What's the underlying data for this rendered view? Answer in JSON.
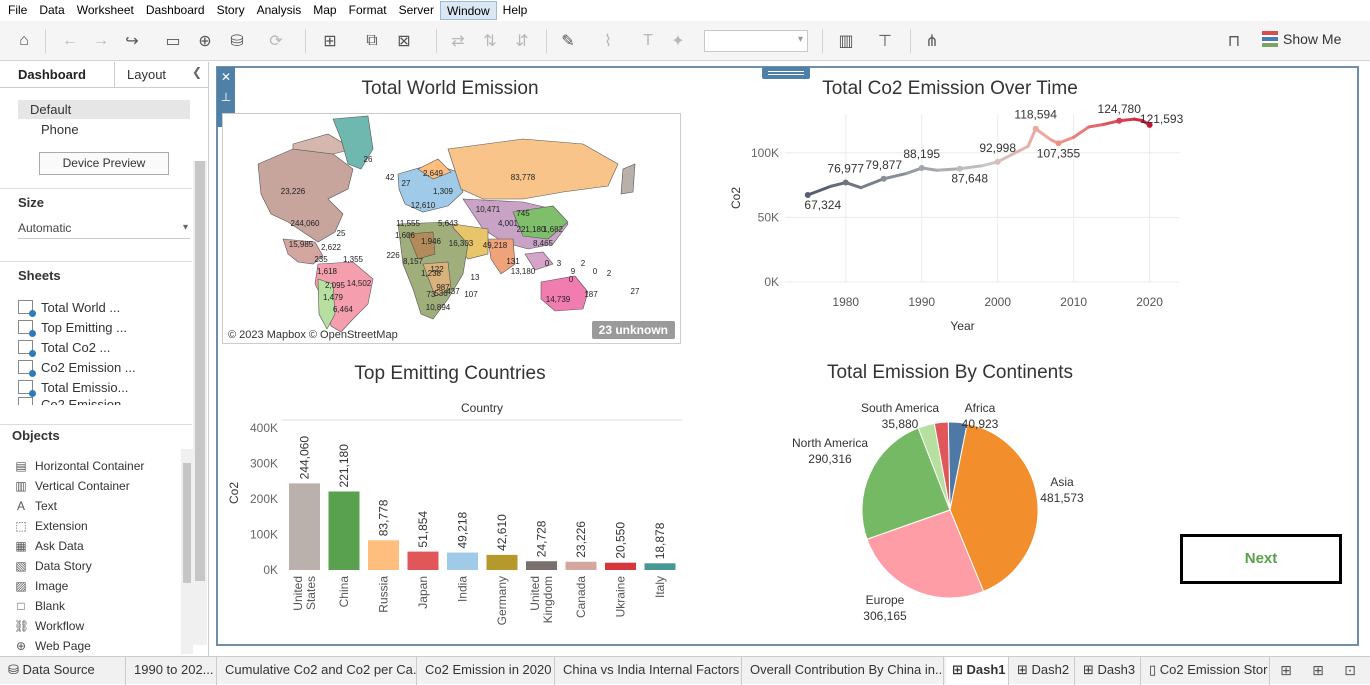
{
  "menu": [
    "File",
    "Data",
    "Worksheet",
    "Dashboard",
    "Story",
    "Analysis",
    "Map",
    "Format",
    "Server",
    "Window",
    "Help"
  ],
  "menu_active": "Window",
  "toolbar": {
    "show_me_label": "Show Me"
  },
  "left_pane": {
    "tabs": [
      "Dashboard",
      "Layout"
    ],
    "device_options": [
      "Default",
      "Phone"
    ],
    "device_preview_label": "Device Preview",
    "size_title": "Size",
    "size_value": "Automatic",
    "sheets_title": "Sheets",
    "sheets": [
      "Total World ...",
      "Top Emitting ...",
      "Total Co2 ...",
      "Co2 Emission ...",
      "Total Emissio...",
      "Co2 Emission"
    ],
    "objects_title": "Objects",
    "objects": [
      {
        "label": "Horizontal Container",
        "icon": "horizontal-container-icon"
      },
      {
        "label": "Vertical Container",
        "icon": "vertical-container-icon"
      },
      {
        "label": "Text",
        "icon": "text-icon"
      },
      {
        "label": "Extension",
        "icon": "extension-icon"
      },
      {
        "label": "Ask Data",
        "icon": "ask-data-icon"
      },
      {
        "label": "Data Story",
        "icon": "data-story-icon"
      },
      {
        "label": "Image",
        "icon": "image-icon"
      },
      {
        "label": "Blank",
        "icon": "blank-icon"
      },
      {
        "label": "Workflow",
        "icon": "workflow-icon"
      },
      {
        "label": "Web Page",
        "icon": "web-page-icon"
      }
    ]
  },
  "dashboard": {
    "map": {
      "title": "Total World Emission",
      "credit": "© 2023 Mapbox © OpenStreetMap",
      "unknown_badge": "23 unknown",
      "labels": [
        "26",
        "23,226",
        "244,060",
        "25",
        "15,985",
        "2,622",
        "235",
        "1,355",
        "1,618",
        "2,095",
        "1,479",
        "14,502",
        "6,464",
        "2,649",
        "42",
        "27",
        "1,309",
        "83,778",
        "12,610",
        "10,471",
        "745",
        "11,555",
        "5,643",
        "4,001",
        "221,180",
        "1,606",
        "1,946",
        "16,303",
        "49,218",
        "8,465",
        "1,682",
        "226",
        "8,157",
        "1,238",
        "13,180",
        "131",
        "122",
        "987",
        "0",
        "3",
        "2",
        "9",
        "0",
        "0",
        "2",
        "73",
        "536",
        "437",
        "107",
        "13",
        "10,894",
        "14,739",
        "187",
        "27"
      ]
    },
    "bar": {
      "title": "Top Emitting Countries"
    },
    "line": {
      "title": "Total Co2 Emission Over Time"
    },
    "pie": {
      "title": "Total Emission By Continents"
    },
    "next_label": "Next"
  },
  "chart_data": [
    {
      "type": "bar",
      "title": "Top Emitting Countries",
      "xlabel": "Country",
      "ylabel": "Co2",
      "categories": [
        "United States",
        "China",
        "Russia",
        "Japan",
        "India",
        "Germany",
        "United Kingdom",
        "Canada",
        "Ukraine",
        "Italy"
      ],
      "values": [
        244060,
        221180,
        83778,
        51854,
        49218,
        42610,
        24728,
        23226,
        20550,
        18878
      ],
      "value_labels": [
        "244,060",
        "221,180",
        "83,778",
        "51,854",
        "49,218",
        "42,610",
        "24,728",
        "23,226",
        "20,550",
        "18,878"
      ],
      "colors": [
        "#bab0ac",
        "#59a14f",
        "#ffbe7d",
        "#e15759",
        "#a0cbe8",
        "#b6992d",
        "#79706e",
        "#d4a6a0",
        "#d7373c",
        "#499894"
      ],
      "yticks": [
        "0K",
        "100K",
        "200K",
        "300K",
        "400K"
      ],
      "ylim": [
        0,
        400000
      ],
      "grid": false
    },
    {
      "type": "line",
      "title": "Total Co2 Emission Over Time",
      "xlabel": "Year",
      "ylabel": "Co2",
      "x": [
        1975,
        1978,
        1980,
        1982,
        1985,
        1988,
        1990,
        1992,
        1995,
        1998,
        2000,
        2002,
        2004,
        2005,
        2007,
        2008,
        2010,
        2012,
        2014,
        2016,
        2018,
        2019,
        2020
      ],
      "y": [
        67324,
        74000,
        76977,
        73000,
        79877,
        84000,
        88195,
        86500,
        87648,
        90000,
        92998,
        99000,
        105000,
        118594,
        110000,
        107355,
        112000,
        120000,
        122000,
        124780,
        126000,
        125000,
        121593
      ],
      "data_labels": [
        {
          "x": 1975,
          "label": "67,324"
        },
        {
          "x": 1980,
          "label": "76,977"
        },
        {
          "x": 1985,
          "label": "79,877"
        },
        {
          "x": 1990,
          "label": "88,195"
        },
        {
          "x": 1995,
          "label": "87,648"
        },
        {
          "x": 2000,
          "label": "92,998"
        },
        {
          "x": 2005,
          "label": "118,594"
        },
        {
          "x": 2008,
          "label": "107,355"
        },
        {
          "x": 2016,
          "label": "124,780"
        },
        {
          "x": 2020,
          "label": "121,593"
        }
      ],
      "xticks": [
        1980,
        1990,
        2000,
        2010,
        2020
      ],
      "yticks": [
        "0K",
        "50K",
        "100K"
      ],
      "xlim": [
        1972,
        2024
      ],
      "ylim": [
        0,
        130000
      ],
      "grid": true
    },
    {
      "type": "pie",
      "title": "Total Emission By Continents",
      "slices": [
        {
          "name": "Africa",
          "value": 40923,
          "label": "40,923",
          "color": "#4e79a7"
        },
        {
          "name": "Asia",
          "value": 481573,
          "label": "481,573",
          "color": "#f28e2b"
        },
        {
          "name": "Europe",
          "value": 306165,
          "label": "306,165",
          "color": "#ff9da7"
        },
        {
          "name": "North America",
          "value": 290316,
          "label": "290,316",
          "color": "#76b965"
        },
        {
          "name": "South America",
          "value": 35880,
          "label": "35,880",
          "color": "#b6dfa0"
        },
        {
          "name": "",
          "value": 30000,
          "label": "",
          "color": "#e15759"
        }
      ]
    }
  ],
  "tabs": [
    "Data Source",
    "1990 to 202...",
    "Cumulative Co2 and Co2 per Ca...",
    "Co2 Emission in 2020",
    "China vs India Internal Factors",
    "Overall Contribution  By China in...",
    "Dash1",
    "Dash2",
    "Dash3",
    "Co2 Emission Stor"
  ],
  "active_tab": "Dash1"
}
